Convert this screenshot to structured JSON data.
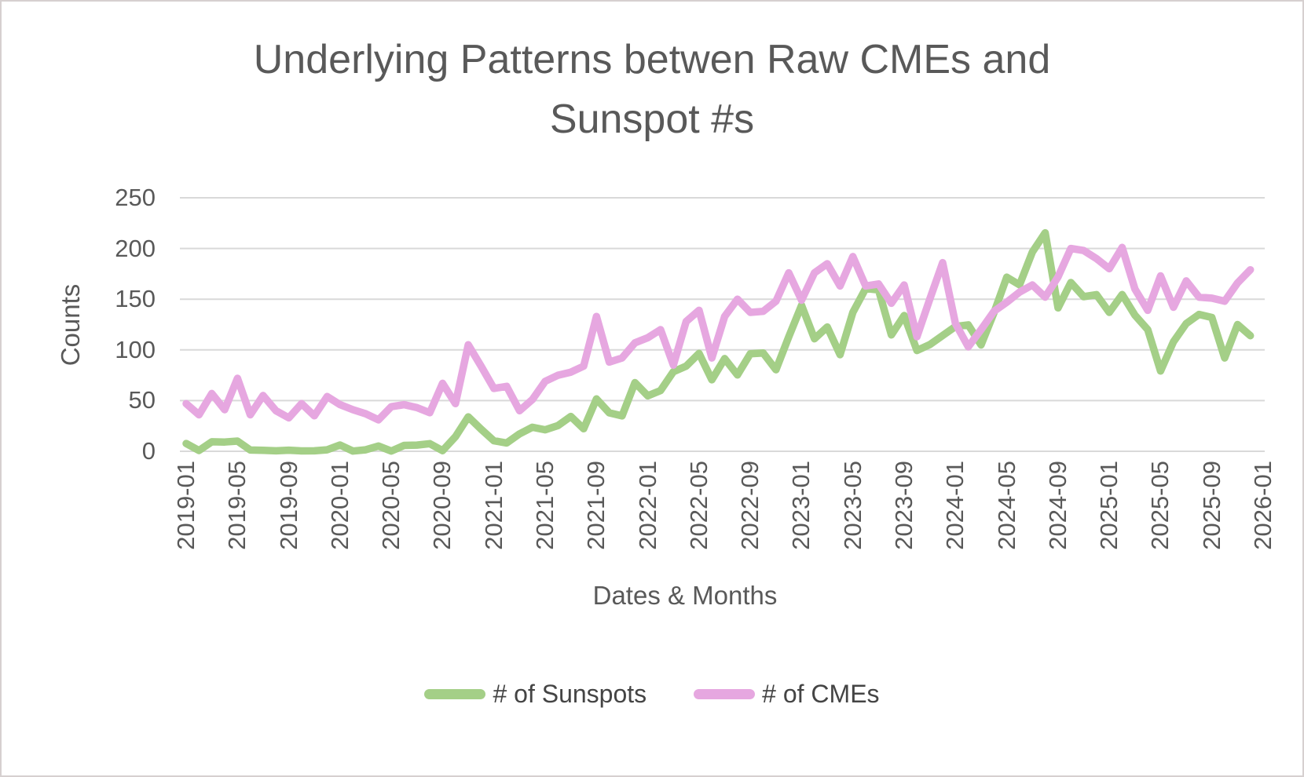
{
  "header": {
    "title_line1": "Underlying Patterns betwen Raw CMEs and",
    "title_line2": "Sunspot #s"
  },
  "chart_data": {
    "type": "line",
    "title": "Underlying Patterns betwen Raw CMEs and Sunspot #s",
    "xlabel": "Dates & Months",
    "ylabel": "Counts",
    "ylim": [
      0,
      250
    ],
    "yticks": [
      0,
      50,
      100,
      150,
      200,
      250
    ],
    "grid": "horizontal",
    "gridline_color": "#d9d9d9",
    "text_color": "#595959",
    "legend_position": "bottom",
    "x_start": "2019-01",
    "x_axis_end": "2026-01",
    "x_tick_interval_months": 4,
    "x_tick_labels": [
      "2019-01",
      "2019-05",
      "2019-09",
      "2020-01",
      "2020-05",
      "2020-09",
      "2021-01",
      "2021-05",
      "2021-09",
      "2022-01",
      "2022-05",
      "2022-09",
      "2023-01",
      "2023-05",
      "2023-09",
      "2024-01",
      "2024-05",
      "2024-09",
      "2025-01",
      "2025-05",
      "2025-09",
      "2026-01"
    ],
    "series": [
      {
        "name": "# of Sunspots",
        "color": "#a4cf87",
        "values": [
          7.7,
          0.8,
          9.4,
          9.1,
          10.1,
          1.2,
          0.9,
          0.5,
          1.1,
          0.4,
          0.5,
          1.5,
          6.2,
          0.2,
          1.5,
          5.2,
          0.2,
          5.8,
          6.1,
          7.5,
          0.6,
          14.4,
          34.0,
          21.8,
          10.4,
          8.2,
          17.2,
          23.7,
          21.2,
          25.4,
          34.4,
          22.2,
          51.6,
          37.9,
          34.9,
          67.7,
          54.7,
          59.9,
          78.5,
          84.0,
          96.5,
          70.5,
          91.4,
          75.3,
          96.1,
          96.9,
          80.4,
          112.9,
          143.9,
          111.0,
          122.6,
          95.3,
          137.0,
          160.5,
          159.1,
          114.8,
          133.9,
          99.4,
          105.2,
          114.2,
          123.1,
          124.7,
          104.9,
          136.5,
          171.7,
          164.2,
          196.5,
          215.5,
          141.4,
          166.4,
          152.5,
          154.5,
          137.0,
          154.6,
          134.2,
          120.0,
          79.2,
          108.0,
          126.0,
          135.0,
          132.0,
          92.0,
          125.0,
          114.0
        ]
      },
      {
        "name": "# of CMEs",
        "color": "#e6a7e0",
        "values": [
          47,
          36,
          57,
          41,
          72,
          36,
          55,
          40,
          33,
          47,
          35,
          54,
          46,
          41,
          37,
          31,
          44,
          46,
          43,
          38,
          67,
          47,
          105,
          84,
          62,
          64,
          40,
          51,
          69,
          75,
          78,
          84,
          133,
          88,
          92,
          107,
          112,
          120,
          85,
          128,
          139,
          92,
          133,
          150,
          137,
          138,
          148,
          176,
          149,
          176,
          185,
          163,
          192,
          163,
          165,
          146,
          164,
          113,
          150,
          186,
          126,
          103,
          120,
          138,
          147,
          157,
          164,
          152,
          172,
          200,
          198,
          190,
          180,
          201,
          160,
          139,
          173,
          142,
          168,
          152,
          151,
          148,
          166,
          179
        ]
      }
    ]
  }
}
